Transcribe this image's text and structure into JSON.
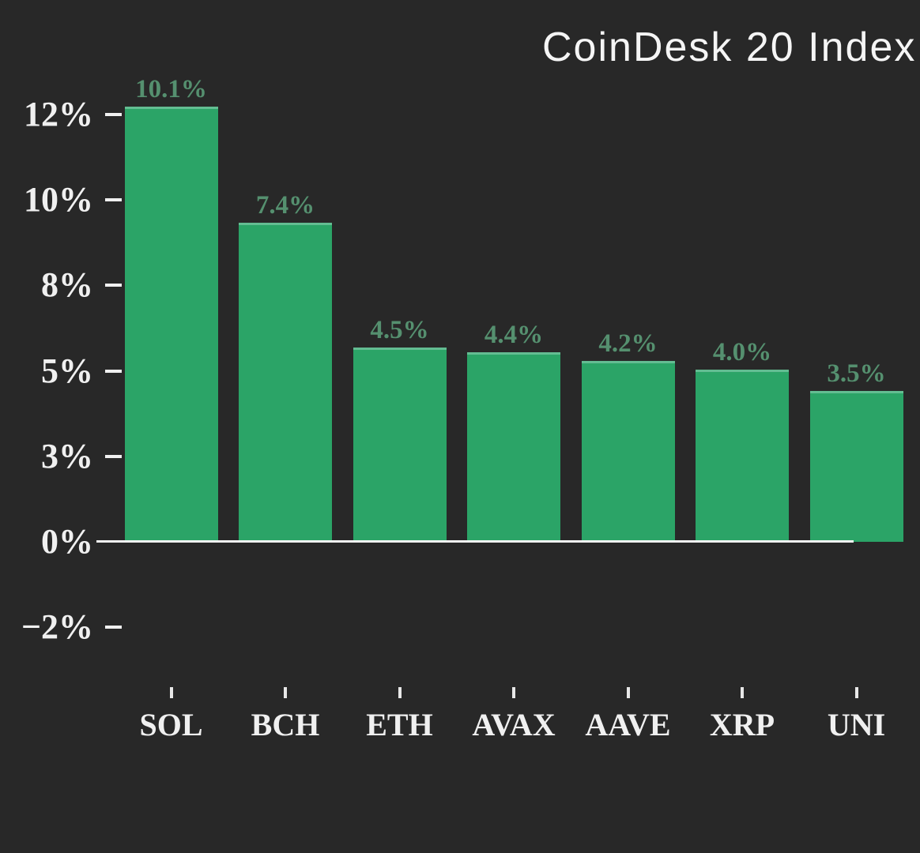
{
  "title": "CoinDesk 20 Index",
  "colors": {
    "background": "#282828",
    "bar": "#2ba467",
    "bar_top_edge": "#63bd92",
    "value_label": "#55906f",
    "axis_text": "#f0f0f0",
    "baseline": "#f2f2f2",
    "title_text": "#f5f5f5"
  },
  "chart_data": {
    "type": "bar",
    "title": "CoinDesk 20 Index",
    "categories": [
      "SOL",
      "BCH",
      "ETH",
      "AVAX",
      "AAVE",
      "XRP",
      "UNI"
    ],
    "values": [
      10.1,
      7.4,
      4.5,
      4.4,
      4.2,
      4.0,
      3.5
    ],
    "value_labels": [
      "10.1%",
      "7.4%",
      "4.5%",
      "4.4%",
      "4.2%",
      "4.0%",
      "3.5%"
    ],
    "y_tick_labels": [
      "12%",
      "10%",
      "8%",
      "5%",
      "3%",
      "0%",
      "−2%"
    ],
    "xlabel": "",
    "ylabel": "",
    "units": "%",
    "ylim": [
      -3.5,
      13
    ],
    "grid": false,
    "legend": "none",
    "bar_color": "#2ba467"
  }
}
